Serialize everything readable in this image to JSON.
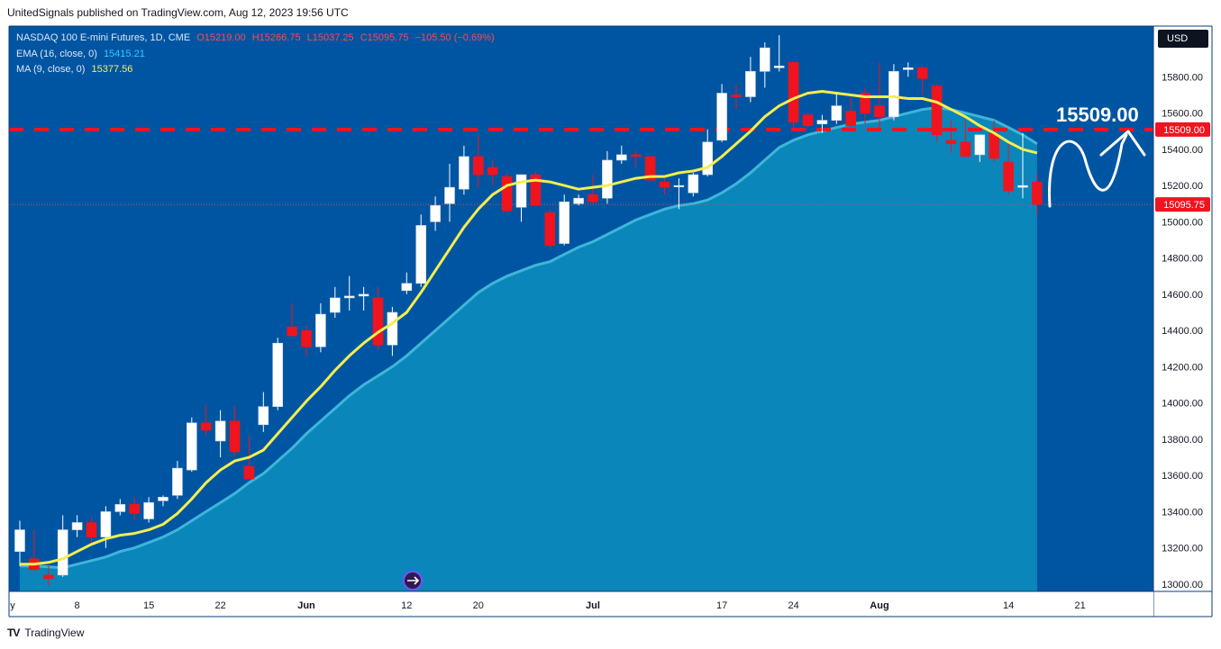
{
  "header": {
    "text": "UnitedSignals published on TradingView.com, Aug 12, 2023 19:56 UTC"
  },
  "legend": {
    "symbol": "NASDAQ 100 E-mini Futures, 1D, CME",
    "ohlc": {
      "o": "O15219.00",
      "h": "H15266.75",
      "l": "L15037.25",
      "c": "C15095.75",
      "chg": "−105.50 (−0.69%)"
    },
    "ema_label": "EMA (16, close, 0)",
    "ema_value": "15415.21",
    "ma_label": "MA (9, close, 0)",
    "ma_value": "15377.56"
  },
  "currency_button": "USD",
  "target_label": "15509.00",
  "footer": {
    "logo": "TV",
    "brand": "TradingView"
  },
  "colors": {
    "bg": "#0055a2",
    "up": "#ffffff",
    "down": "#f0141e",
    "ema_fill": "#0a86bb",
    "ma_line": "#f4ee4e",
    "target": "#f0141e"
  },
  "chart_data": {
    "type": "candlestick",
    "title": "NASDAQ 100 E-mini Futures, 1D, CME",
    "ylim": [
      12960,
      16080
    ],
    "y_ticks": [
      "13000.00",
      "13200.00",
      "13400.00",
      "13600.00",
      "13800.00",
      "14000.00",
      "14200.00",
      "14400.00",
      "14600.00",
      "14800.00",
      "15000.00",
      "15200.00",
      "15400.00",
      "15600.00",
      "15800.00"
    ],
    "price_tags": {
      "target": "15509.00",
      "last": "15095.75"
    },
    "x_ticks": [
      {
        "label": "y",
        "idx": -0.5
      },
      {
        "label": "8",
        "idx": 4
      },
      {
        "label": "15",
        "idx": 9
      },
      {
        "label": "22",
        "idx": 14
      },
      {
        "label": "Jun",
        "idx": 20
      },
      {
        "label": "12",
        "idx": 27
      },
      {
        "label": "20",
        "idx": 32
      },
      {
        "label": "Jul",
        "idx": 40
      },
      {
        "label": "17",
        "idx": 49
      },
      {
        "label": "24",
        "idx": 54
      },
      {
        "label": "Aug",
        "idx": 60
      },
      {
        "label": "14",
        "idx": 69
      },
      {
        "label": "21",
        "idx": 74
      }
    ],
    "candles": [
      {
        "o": 13180,
        "h": 13350,
        "l": 13100,
        "c": 13300
      },
      {
        "o": 13140,
        "h": 13300,
        "l": 13080,
        "c": 13080
      },
      {
        "o": 13050,
        "h": 13100,
        "l": 12990,
        "c": 13030
      },
      {
        "o": 13050,
        "h": 13380,
        "l": 13040,
        "c": 13300
      },
      {
        "o": 13300,
        "h": 13380,
        "l": 13260,
        "c": 13340
      },
      {
        "o": 13340,
        "h": 13370,
        "l": 13230,
        "c": 13260
      },
      {
        "o": 13260,
        "h": 13430,
        "l": 13200,
        "c": 13400
      },
      {
        "o": 13400,
        "h": 13470,
        "l": 13380,
        "c": 13440
      },
      {
        "o": 13440,
        "h": 13480,
        "l": 13350,
        "c": 13390
      },
      {
        "o": 13360,
        "h": 13480,
        "l": 13340,
        "c": 13450
      },
      {
        "o": 13460,
        "h": 13490,
        "l": 13430,
        "c": 13480
      },
      {
        "o": 13490,
        "h": 13680,
        "l": 13470,
        "c": 13640
      },
      {
        "o": 13630,
        "h": 13920,
        "l": 13620,
        "c": 13890
      },
      {
        "o": 13890,
        "h": 13990,
        "l": 13820,
        "c": 13850
      },
      {
        "o": 13790,
        "h": 13960,
        "l": 13700,
        "c": 13900
      },
      {
        "o": 13900,
        "h": 13980,
        "l": 13710,
        "c": 13730
      },
      {
        "o": 13650,
        "h": 13820,
        "l": 13580,
        "c": 13580
      },
      {
        "o": 13880,
        "h": 14060,
        "l": 13840,
        "c": 13980
      },
      {
        "o": 13980,
        "h": 14360,
        "l": 13960,
        "c": 14330
      },
      {
        "o": 14420,
        "h": 14550,
        "l": 14380,
        "c": 14370
      },
      {
        "o": 14400,
        "h": 14430,
        "l": 14260,
        "c": 14310
      },
      {
        "o": 14310,
        "h": 14550,
        "l": 14280,
        "c": 14490
      },
      {
        "o": 14500,
        "h": 14640,
        "l": 14470,
        "c": 14580
      },
      {
        "o": 14580,
        "h": 14700,
        "l": 14510,
        "c": 14590
      },
      {
        "o": 14590,
        "h": 14640,
        "l": 14510,
        "c": 14600
      },
      {
        "o": 14580,
        "h": 14640,
        "l": 14290,
        "c": 14320
      },
      {
        "o": 14320,
        "h": 14530,
        "l": 14260,
        "c": 14500
      },
      {
        "o": 14620,
        "h": 14720,
        "l": 14600,
        "c": 14660
      },
      {
        "o": 14660,
        "h": 15040,
        "l": 14640,
        "c": 14980
      },
      {
        "o": 15000,
        "h": 15140,
        "l": 14950,
        "c": 15090
      },
      {
        "o": 15100,
        "h": 15320,
        "l": 15000,
        "c": 15190
      },
      {
        "o": 15180,
        "h": 15420,
        "l": 15150,
        "c": 15360
      },
      {
        "o": 15360,
        "h": 15480,
        "l": 15190,
        "c": 15260
      },
      {
        "o": 15300,
        "h": 15340,
        "l": 15200,
        "c": 15260
      },
      {
        "o": 15250,
        "h": 15270,
        "l": 15050,
        "c": 15060
      },
      {
        "o": 15080,
        "h": 15260,
        "l": 15000,
        "c": 15260
      },
      {
        "o": 15260,
        "h": 15280,
        "l": 15090,
        "c": 15090
      },
      {
        "o": 15050,
        "h": 15070,
        "l": 14850,
        "c": 14870
      },
      {
        "o": 14880,
        "h": 15150,
        "l": 14870,
        "c": 15110
      },
      {
        "o": 15100,
        "h": 15150,
        "l": 15090,
        "c": 15130
      },
      {
        "o": 15150,
        "h": 15260,
        "l": 15100,
        "c": 15110
      },
      {
        "o": 15130,
        "h": 15390,
        "l": 15100,
        "c": 15340
      },
      {
        "o": 15340,
        "h": 15420,
        "l": 15320,
        "c": 15370
      },
      {
        "o": 15370,
        "h": 15390,
        "l": 15300,
        "c": 15360
      },
      {
        "o": 15360,
        "h": 15360,
        "l": 15230,
        "c": 15230
      },
      {
        "o": 15220,
        "h": 15250,
        "l": 15150,
        "c": 15190
      },
      {
        "o": 15200,
        "h": 15240,
        "l": 15070,
        "c": 15200
      },
      {
        "o": 15160,
        "h": 15270,
        "l": 15140,
        "c": 15260
      },
      {
        "o": 15260,
        "h": 15510,
        "l": 15250,
        "c": 15440
      },
      {
        "o": 15450,
        "h": 15760,
        "l": 15440,
        "c": 15710
      },
      {
        "o": 15700,
        "h": 15760,
        "l": 15620,
        "c": 15690
      },
      {
        "o": 15690,
        "h": 15910,
        "l": 15660,
        "c": 15830
      },
      {
        "o": 15830,
        "h": 15990,
        "l": 15740,
        "c": 15960
      },
      {
        "o": 15850,
        "h": 16030,
        "l": 15830,
        "c": 15860
      },
      {
        "o": 15880,
        "h": 15880,
        "l": 15510,
        "c": 15550
      },
      {
        "o": 15590,
        "h": 15600,
        "l": 15520,
        "c": 15530
      },
      {
        "o": 15540,
        "h": 15590,
        "l": 15490,
        "c": 15560
      },
      {
        "o": 15560,
        "h": 15710,
        "l": 15540,
        "c": 15640
      },
      {
        "o": 15610,
        "h": 15690,
        "l": 15510,
        "c": 15530
      },
      {
        "o": 15710,
        "h": 15740,
        "l": 15540,
        "c": 15600
      },
      {
        "o": 15640,
        "h": 15880,
        "l": 15510,
        "c": 15580
      },
      {
        "o": 15580,
        "h": 15870,
        "l": 15560,
        "c": 15830
      },
      {
        "o": 15840,
        "h": 15880,
        "l": 15800,
        "c": 15850
      },
      {
        "o": 15850,
        "h": 15860,
        "l": 15700,
        "c": 15790
      },
      {
        "o": 15750,
        "h": 15760,
        "l": 15440,
        "c": 15480
      },
      {
        "o": 15450,
        "h": 15560,
        "l": 15380,
        "c": 15430
      },
      {
        "o": 15440,
        "h": 15560,
        "l": 15360,
        "c": 15360
      },
      {
        "o": 15370,
        "h": 15480,
        "l": 15330,
        "c": 15480
      },
      {
        "o": 15490,
        "h": 15560,
        "l": 15330,
        "c": 15350
      },
      {
        "o": 15330,
        "h": 15450,
        "l": 15150,
        "c": 15170
      },
      {
        "o": 15190,
        "h": 15490,
        "l": 15130,
        "c": 15200
      },
      {
        "o": 15219,
        "h": 15266.75,
        "l": 15037.25,
        "c": 15095.75
      }
    ],
    "ema16_band": [
      13100,
      13100,
      13095,
      13090,
      13110,
      13130,
      13150,
      13180,
      13200,
      13230,
      13260,
      13300,
      13350,
      13400,
      13450,
      13500,
      13560,
      13610,
      13680,
      13750,
      13830,
      13900,
      13970,
      14040,
      14100,
      14150,
      14200,
      14260,
      14330,
      14400,
      14470,
      14540,
      14610,
      14660,
      14700,
      14730,
      14760,
      14780,
      14820,
      14860,
      14890,
      14930,
      14970,
      15010,
      15040,
      15070,
      15090,
      15100,
      15120,
      15160,
      15210,
      15270,
      15340,
      15410,
      15450,
      15480,
      15500,
      15520,
      15540,
      15550,
      15560,
      15580,
      15600,
      15620,
      15630,
      15620,
      15600,
      15580,
      15560,
      15520,
      15480,
      15430
    ],
    "ma9": [
      13110,
      13110,
      13120,
      13140,
      13180,
      13220,
      13250,
      13270,
      13280,
      13300,
      13330,
      13390,
      13470,
      13560,
      13630,
      13680,
      13700,
      13740,
      13830,
      13920,
      14010,
      14090,
      14180,
      14260,
      14330,
      14390,
      14440,
      14500,
      14610,
      14730,
      14850,
      14970,
      15070,
      15150,
      15200,
      15220,
      15230,
      15220,
      15200,
      15180,
      15190,
      15200,
      15220,
      15240,
      15250,
      15250,
      15270,
      15280,
      15300,
      15360,
      15430,
      15500,
      15580,
      15640,
      15680,
      15710,
      15720,
      15710,
      15700,
      15690,
      15690,
      15690,
      15680,
      15680,
      15660,
      15620,
      15580,
      15530,
      15490,
      15440,
      15400,
      15380
    ]
  }
}
